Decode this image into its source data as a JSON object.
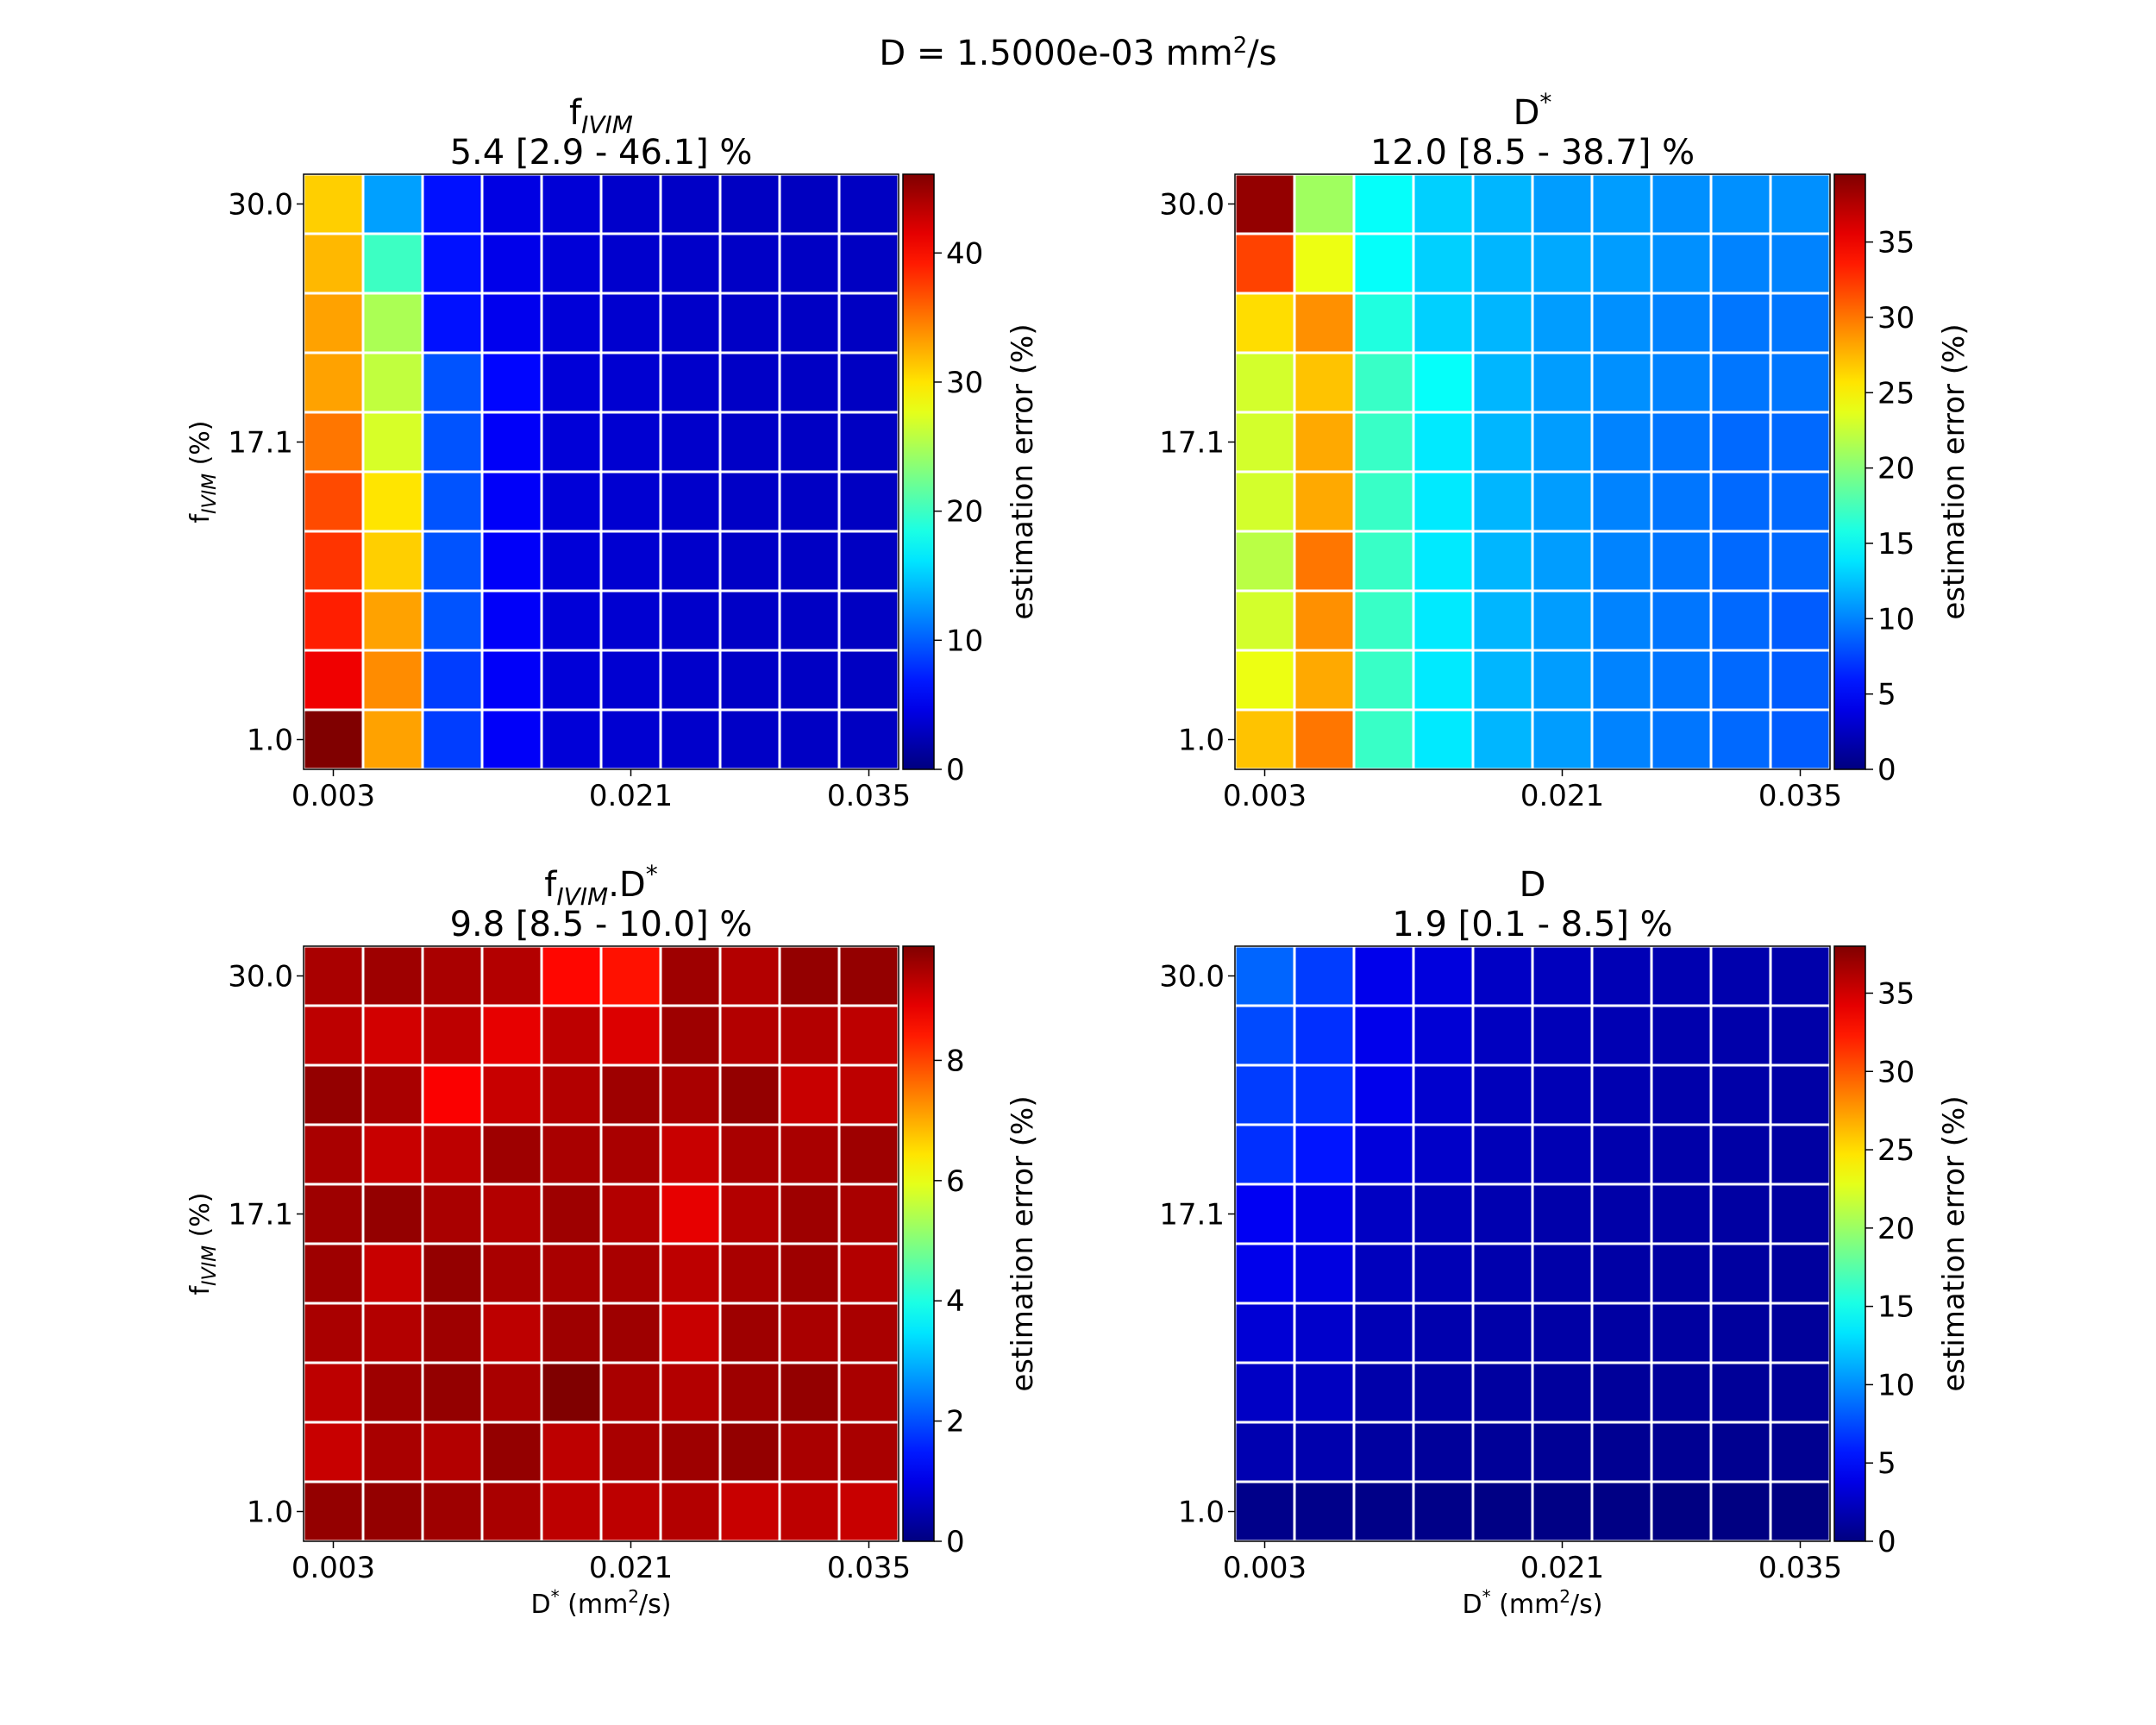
{
  "figure": {
    "suptitle_pre": "D = 1.5000e-03 mm",
    "suptitle_sup": "2",
    "suptitle_post": "/s"
  },
  "chart_data": [
    {
      "type": "heatmap",
      "title_line1": "f",
      "title_line1_sub": "IVIM",
      "title_line1_rest": "",
      "title_line2": "5.4 [2.9 - 46.1] %",
      "x_tick_labels": [
        "0.003",
        "0.021",
        "0.035"
      ],
      "y_tick_labels": [
        "30.0",
        "17.1",
        "1.0"
      ],
      "ylabel": {
        "main": "f",
        "sub": "IVIM",
        "rest": " (%)"
      },
      "xlabel": null,
      "colorbar": {
        "label": "estimation error (%)",
        "min": 0,
        "max": 46.1,
        "ticks": [
          0,
          10,
          20,
          30,
          40
        ]
      },
      "grid": true,
      "values": [
        [
          31,
          13,
          6.5,
          4.5,
          3.9,
          3.4,
          3.2,
          3.0,
          2.9,
          3.0
        ],
        [
          32,
          20,
          6.5,
          4.8,
          4.0,
          3.5,
          3.3,
          3.2,
          3.1,
          3.0
        ],
        [
          33,
          25,
          6.5,
          5.0,
          4.0,
          3.6,
          3.3,
          3.2,
          3.1,
          3.0
        ],
        [
          33,
          26,
          9.5,
          6.0,
          4.0,
          3.7,
          3.4,
          3.2,
          3.1,
          3.0
        ],
        [
          35,
          27,
          9.5,
          5.5,
          4.0,
          3.7,
          3.4,
          3.2,
          3.1,
          3.0
        ],
        [
          37,
          30,
          9.5,
          5.5,
          4.0,
          3.7,
          3.4,
          3.2,
          3.1,
          3.0
        ],
        [
          38,
          31,
          9.5,
          5.5,
          4.0,
          3.7,
          3.4,
          3.2,
          3.1,
          3.0
        ],
        [
          39,
          33,
          9.5,
          5.5,
          4.0,
          3.7,
          3.4,
          3.2,
          3.1,
          3.0
        ],
        [
          41,
          34,
          8.5,
          5.5,
          4.0,
          3.7,
          3.4,
          3.2,
          3.1,
          3.0
        ],
        [
          46.1,
          33,
          8.5,
          5.5,
          4.0,
          3.7,
          3.4,
          3.2,
          3.1,
          3.0
        ]
      ]
    },
    {
      "type": "heatmap",
      "title_line1": "D",
      "title_line1_sub": "",
      "title_line1_rest": "*",
      "title_line2": "12.0 [8.5 - 38.7] %",
      "x_tick_labels": [
        "0.003",
        "0.021",
        "0.035"
      ],
      "y_tick_labels": [
        "30.0",
        "17.1",
        "1.0"
      ],
      "ylabel": null,
      "xlabel": null,
      "colorbar": {
        "label": "estimation error (%)",
        "min": 0,
        "max": 39.5,
        "ticks": [
          0,
          5,
          10,
          15,
          20,
          25,
          30,
          35
        ]
      },
      "grid": true,
      "values": [
        [
          38.7,
          21,
          15,
          13,
          12,
          11,
          11,
          10.5,
          10.5,
          10.5
        ],
        [
          32,
          24,
          15,
          13,
          12,
          11.5,
          11,
          10.5,
          10,
          10
        ],
        [
          26,
          29,
          16,
          13,
          12,
          11,
          10.5,
          10,
          9.5,
          9.5
        ],
        [
          23,
          27,
          17,
          15,
          12,
          11,
          10.5,
          10,
          9.5,
          9.5
        ],
        [
          23,
          28,
          17,
          14,
          12,
          11,
          10,
          9.5,
          9,
          9
        ],
        [
          23,
          28,
          17,
          14,
          12,
          11,
          10,
          9.5,
          9,
          9
        ],
        [
          22,
          30,
          17,
          14,
          12,
          11,
          10,
          9.5,
          9,
          9
        ],
        [
          23,
          29,
          17,
          14,
          12,
          11,
          10,
          9.5,
          9,
          8.5
        ],
        [
          24,
          28,
          17,
          14,
          12,
          11,
          10,
          9.5,
          9,
          8.5
        ],
        [
          27,
          30,
          17,
          14,
          12,
          11,
          10,
          9.5,
          9,
          8.5
        ]
      ]
    },
    {
      "type": "heatmap",
      "title_line1": "f",
      "title_line1_sub": "IVIM",
      "title_line1_rest": ".D*",
      "title_line2": "9.8 [8.5 - 10.0] %",
      "x_tick_labels": [
        "0.003",
        "0.021",
        "0.035"
      ],
      "y_tick_labels": [
        "30.0",
        "17.1",
        "1.0"
      ],
      "ylabel": {
        "main": "f",
        "sub": "IVIM",
        "rest": " (%)"
      },
      "xlabel": {
        "main": "D",
        "sup": "*",
        "rest1": " (mm",
        "sup2": "2",
        "rest2": "/s)"
      },
      "colorbar": {
        "label": "estimation error (%)",
        "min": 0,
        "max": 9.9,
        "ticks": [
          0,
          2,
          4,
          6,
          8
        ]
      },
      "grid": true,
      "values": [
        [
          9.5,
          9.6,
          9.5,
          9.4,
          8.6,
          8.5,
          9.6,
          9.4,
          9.7,
          9.7
        ],
        [
          9.3,
          9.1,
          9.3,
          8.9,
          9.3,
          9.0,
          9.6,
          9.4,
          9.4,
          9.3
        ],
        [
          9.7,
          9.5,
          8.7,
          9.2,
          9.4,
          9.6,
          9.5,
          9.7,
          9.2,
          9.3
        ],
        [
          9.5,
          9.2,
          9.3,
          9.6,
          9.5,
          9.5,
          9.2,
          9.5,
          9.5,
          9.6
        ],
        [
          9.6,
          9.7,
          9.5,
          9.4,
          9.6,
          9.4,
          8.9,
          9.4,
          9.6,
          9.5
        ],
        [
          9.6,
          9.2,
          9.7,
          9.5,
          9.5,
          9.5,
          9.3,
          9.5,
          9.6,
          9.4
        ],
        [
          9.5,
          9.4,
          9.6,
          9.3,
          9.6,
          9.6,
          9.2,
          9.6,
          9.5,
          9.5
        ],
        [
          9.3,
          9.6,
          9.7,
          9.5,
          10.0,
          9.5,
          9.4,
          9.6,
          9.7,
          9.5
        ],
        [
          9.2,
          9.5,
          9.4,
          9.7,
          9.3,
          9.5,
          9.6,
          9.7,
          9.5,
          9.5
        ],
        [
          9.7,
          9.7,
          9.6,
          9.5,
          9.3,
          9.3,
          9.4,
          9.2,
          9.3,
          9.2
        ]
      ]
    },
    {
      "type": "heatmap",
      "title_line1": "D",
      "title_line1_sub": "",
      "title_line1_rest": "",
      "title_line2": "1.9 [0.1 - 8.5] %",
      "x_tick_labels": [
        "0.003",
        "0.021",
        "0.035"
      ],
      "y_tick_labels": [
        "30.0",
        "17.1",
        "1.0"
      ],
      "ylabel": null,
      "xlabel": {
        "main": "D",
        "sup": "*",
        "rest1": " (mm",
        "sup2": "2",
        "rest2": "/s)"
      },
      "colorbar": {
        "label": "estimation error (%)",
        "min": 0,
        "max": 38,
        "ticks": [
          0,
          5,
          10,
          15,
          20,
          25,
          30,
          35
        ]
      },
      "grid": true,
      "values": [
        [
          8.5,
          7.0,
          4.0,
          3.5,
          2.6,
          2.3,
          2.0,
          1.8,
          1.7,
          1.6
        ],
        [
          7.5,
          6.5,
          4.0,
          3.2,
          2.4,
          2.1,
          1.9,
          1.7,
          1.6,
          1.5
        ],
        [
          7.0,
          6.5,
          4.0,
          2.9,
          2.2,
          2.0,
          1.8,
          1.6,
          1.5,
          1.4
        ],
        [
          6.5,
          5.5,
          3.4,
          2.7,
          2.1,
          1.9,
          1.7,
          1.5,
          1.4,
          1.3
        ],
        [
          4.3,
          3.8,
          2.5,
          2.1,
          1.8,
          1.6,
          1.5,
          1.4,
          1.3,
          1.2
        ],
        [
          4.0,
          3.6,
          2.3,
          2.0,
          1.7,
          1.5,
          1.4,
          1.3,
          1.2,
          1.1
        ],
        [
          3.2,
          2.8,
          2.0,
          1.7,
          1.5,
          1.4,
          1.3,
          1.2,
          1.1,
          1.0
        ],
        [
          2.6,
          2.4,
          1.6,
          1.4,
          1.2,
          1.1,
          1.0,
          1.0,
          0.9,
          0.9
        ],
        [
          1.8,
          1.7,
          1.2,
          1.0,
          0.9,
          0.8,
          0.7,
          0.7,
          0.6,
          0.6
        ],
        [
          0.4,
          0.4,
          0.3,
          0.3,
          0.2,
          0.2,
          0.2,
          0.1,
          0.1,
          0.1
        ]
      ]
    }
  ]
}
